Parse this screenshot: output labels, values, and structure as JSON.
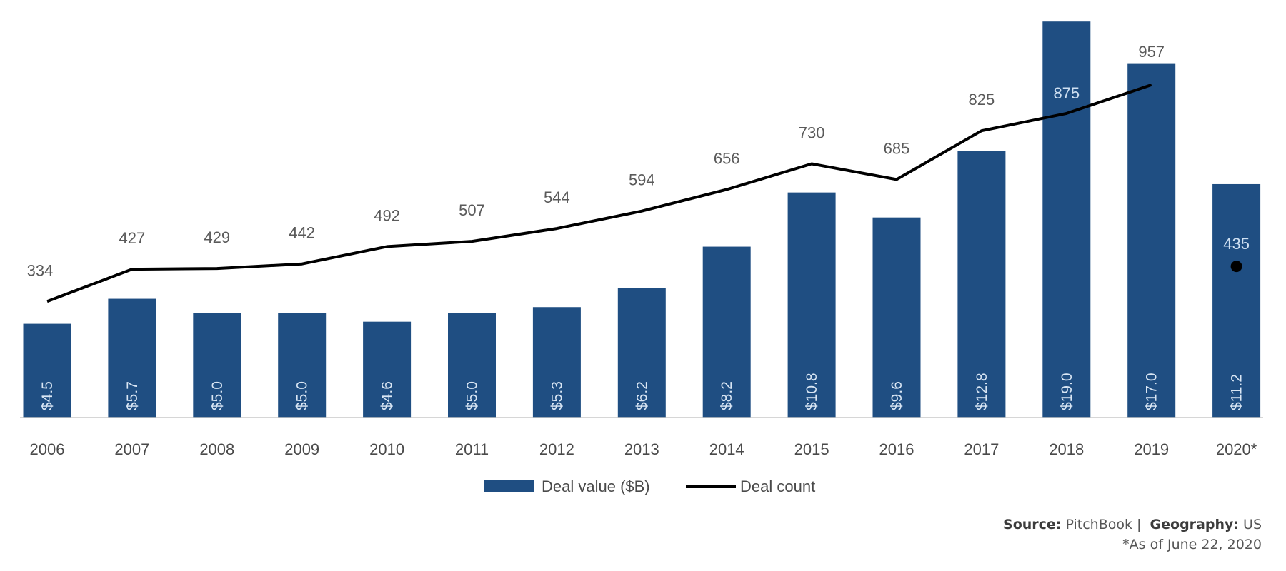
{
  "chart_data": {
    "type": "bar",
    "title": "",
    "xlabel": "",
    "ylabel": "",
    "categories": [
      "2006",
      "2007",
      "2008",
      "2009",
      "2010",
      "2011",
      "2012",
      "2013",
      "2014",
      "2015",
      "2016",
      "2017",
      "2018",
      "2019",
      "2020*"
    ],
    "series": [
      {
        "name": "Deal value ($B)",
        "type": "bar",
        "color": "#1f4e82",
        "values": [
          4.5,
          5.7,
          5.0,
          5.0,
          4.6,
          5.0,
          5.3,
          6.2,
          8.2,
          10.8,
          9.6,
          12.8,
          19.0,
          17.0,
          11.2
        ],
        "labels": [
          "$4.5",
          "$5.7",
          "$5.0",
          "$5.0",
          "$4.6",
          "$5.0",
          "$5.3",
          "$6.2",
          "$8.2",
          "$10.8",
          "$9.6",
          "$12.8",
          "$19.0",
          "$17.0",
          "$11.2"
        ]
      },
      {
        "name": "Deal count",
        "type": "line",
        "color": "#000000",
        "values": [
          334,
          427,
          429,
          442,
          492,
          507,
          544,
          594,
          656,
          730,
          685,
          825,
          875,
          957,
          435
        ],
        "note": "2020* shown as a standalone point (not connected)"
      }
    ],
    "ylim_bar": [
      0,
      19.5
    ],
    "ylim_line": [
      0,
      1200
    ],
    "grid": false,
    "legend": {
      "position": "bottom-center",
      "entries": [
        "Deal value ($B)",
        "Deal count"
      ]
    }
  },
  "footer": {
    "source_label": "Source:",
    "source_value": "PitchBook |",
    "geo_label": "Geography:",
    "geo_value": "US",
    "note": "*As of June 22, 2020"
  }
}
